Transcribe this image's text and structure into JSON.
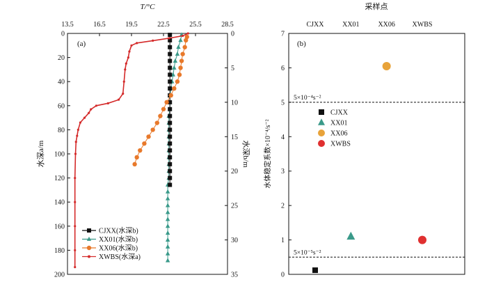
{
  "chart_data": [
    {
      "panel_label": "(a)",
      "type": "line",
      "top_axis": {
        "label": "T/°C",
        "range": [
          13.5,
          28.5
        ],
        "ticks": [
          "13.5",
          "16.5",
          "19.5",
          "22.5",
          "25.5",
          "28.5"
        ]
      },
      "left_axis": {
        "label": "水深a/m",
        "range": [
          0,
          200
        ],
        "inverted": true,
        "ticks": [
          "0",
          "20",
          "40",
          "60",
          "80",
          "100",
          "120",
          "140",
          "160",
          "180",
          "200"
        ]
      },
      "right_axis": {
        "label": "水深b/m",
        "range": [
          0,
          35
        ],
        "inverted": true,
        "ticks": [
          "0",
          "5",
          "10",
          "15",
          "20",
          "25",
          "30",
          "35"
        ]
      },
      "legend": {
        "placement": "bottom-left"
      },
      "series": [
        {
          "name": "CJXX(水深b)",
          "color": "#111111",
          "marker": "square",
          "depth_axis": "b",
          "points": [
            [
              23.1,
              0.2
            ],
            [
              23.1,
              1.0
            ],
            [
              23.1,
              2.0
            ],
            [
              23.1,
              3.0
            ],
            [
              23.1,
              4.0
            ],
            [
              23.1,
              5.0
            ],
            [
              23.1,
              6.0
            ],
            [
              23.1,
              7.0
            ],
            [
              23.1,
              8.0
            ],
            [
              23.1,
              9.0
            ],
            [
              23.1,
              10.0
            ],
            [
              23.1,
              11.0
            ],
            [
              23.1,
              12.0
            ],
            [
              23.1,
              13.0
            ],
            [
              23.1,
              14.0
            ],
            [
              23.1,
              15.0
            ],
            [
              23.1,
              16.0
            ],
            [
              23.1,
              17.0
            ],
            [
              23.1,
              18.0
            ],
            [
              23.1,
              19.0
            ],
            [
              23.1,
              20.0
            ],
            [
              23.1,
              21.0
            ],
            [
              23.1,
              22.0
            ]
          ]
        },
        {
          "name": "XX01(水深b)",
          "color": "#3a9a8a",
          "marker": "triangle",
          "depth_axis": "b",
          "points": [
            [
              24.2,
              0.2
            ],
            [
              24.1,
              1.0
            ],
            [
              23.9,
              2.0
            ],
            [
              23.8,
              3.0
            ],
            [
              23.6,
              4.0
            ],
            [
              23.5,
              5.0
            ],
            [
              23.4,
              6.0
            ],
            [
              23.3,
              7.0
            ],
            [
              23.2,
              8.0
            ],
            [
              23.1,
              9.0
            ],
            [
              23.1,
              10.0
            ],
            [
              23.1,
              11.0
            ],
            [
              23.0,
              12.0
            ],
            [
              23.0,
              13.0
            ],
            [
              23.0,
              14.0
            ],
            [
              23.0,
              15.0
            ],
            [
              23.0,
              16.0
            ],
            [
              23.0,
              17.0
            ],
            [
              23.0,
              18.0
            ],
            [
              23.0,
              19.0
            ],
            [
              23.0,
              20.0
            ],
            [
              23.0,
              21.0
            ],
            [
              22.9,
              22.0
            ],
            [
              22.9,
              23.0
            ],
            [
              22.9,
              24.0
            ],
            [
              22.9,
              25.0
            ],
            [
              22.9,
              26.0
            ],
            [
              22.9,
              27.0
            ],
            [
              22.9,
              28.0
            ],
            [
              22.9,
              29.0
            ],
            [
              22.9,
              30.0
            ],
            [
              22.9,
              31.0
            ],
            [
              22.9,
              32.0
            ],
            [
              22.9,
              33.0
            ]
          ]
        },
        {
          "name": "XX06(水深b)",
          "color": "#e8792b",
          "marker": "circle",
          "depth_axis": "b",
          "points": [
            [
              24.7,
              0.5
            ],
            [
              24.6,
              1.0
            ],
            [
              24.5,
              2.0
            ],
            [
              24.3,
              3.0
            ],
            [
              24.2,
              4.0
            ],
            [
              24.1,
              5.0
            ],
            [
              24.0,
              6.0
            ],
            [
              23.8,
              7.0
            ],
            [
              23.5,
              8.0
            ],
            [
              23.2,
              9.0
            ],
            [
              22.8,
              10.0
            ],
            [
              22.5,
              11.0
            ],
            [
              22.2,
              12.0
            ],
            [
              21.9,
              13.0
            ],
            [
              21.5,
              14.0
            ],
            [
              21.1,
              15.0
            ],
            [
              20.7,
              16.0
            ],
            [
              20.3,
              17.0
            ],
            [
              20.0,
              18.0
            ],
            [
              19.8,
              19.0
            ]
          ]
        },
        {
          "name": "XWBS(水深a)",
          "color": "#d42a2a",
          "marker": "dot",
          "depth_axis": "a",
          "points": [
            [
              24.8,
              0
            ],
            [
              24.3,
              2
            ],
            [
              23.0,
              4
            ],
            [
              21.5,
              6
            ],
            [
              20.0,
              8
            ],
            [
              19.5,
              10
            ],
            [
              19.3,
              15
            ],
            [
              19.2,
              20
            ],
            [
              19.0,
              25
            ],
            [
              18.9,
              30
            ],
            [
              18.8,
              40
            ],
            [
              18.7,
              50
            ],
            [
              18.3,
              55
            ],
            [
              17.3,
              58
            ],
            [
              16.2,
              60
            ],
            [
              15.7,
              63
            ],
            [
              15.5,
              66
            ],
            [
              15.1,
              70
            ],
            [
              14.7,
              74
            ],
            [
              14.5,
              80
            ],
            [
              14.4,
              85
            ],
            [
              14.3,
              90
            ],
            [
              14.25,
              100
            ],
            [
              14.2,
              120
            ],
            [
              14.2,
              140
            ],
            [
              14.2,
              160
            ],
            [
              14.2,
              180
            ],
            [
              14.2,
              194
            ]
          ]
        }
      ]
    },
    {
      "panel_label": "(b)",
      "type": "scatter",
      "top_axis": {
        "label": "采样点",
        "categories": [
          "CJXX",
          "XX01",
          "XX06",
          "XWBS"
        ]
      },
      "y_axis": {
        "label": "水体稳定系数×10⁻⁴/s⁻²",
        "range": [
          0,
          7
        ],
        "ticks": [
          "0",
          "1",
          "2",
          "3",
          "4",
          "5",
          "6",
          "7"
        ]
      },
      "reference_lines": [
        {
          "value": 5.0,
          "label": "5×10⁻⁴s⁻²",
          "style": "dashed"
        },
        {
          "value": 0.5,
          "label": "5×10⁻⁵s⁻²",
          "style": "dashed"
        }
      ],
      "legend": {
        "placement": "middle-left"
      },
      "series": [
        {
          "name": "CJXX",
          "category": "CJXX",
          "value": 0.12,
          "color": "#111111",
          "marker": "square"
        },
        {
          "name": "XX01",
          "category": "XX01",
          "value": 1.1,
          "color": "#3a9a8a",
          "marker": "triangle"
        },
        {
          "name": "XX06",
          "category": "XX06",
          "value": 6.05,
          "color": "#e8a33a",
          "marker": "circle"
        },
        {
          "name": "XWBS",
          "category": "XWBS",
          "value": 1.0,
          "color": "#e03030",
          "marker": "circle"
        }
      ]
    }
  ]
}
